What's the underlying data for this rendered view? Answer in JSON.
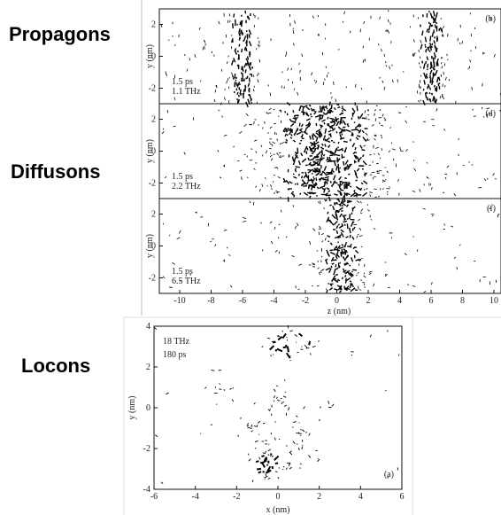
{
  "labels": [
    "Propagons",
    "Diffusons",
    "Locons"
  ],
  "top_figure": {
    "x_label": "z (nm)",
    "y_label": "y (nm)",
    "x_ticks": [
      -10,
      -8,
      -6,
      -4,
      -2,
      0,
      2,
      4,
      6,
      8,
      10
    ],
    "panels": [
      {
        "tag": "(b)",
        "time": "1.5 ps",
        "freq": "1.1 THz",
        "y_ticks": [
          2,
          0,
          -2
        ]
      },
      {
        "tag": "(d)",
        "time": "1.5 ps",
        "freq": "2.2 THz",
        "y_ticks": [
          2,
          0,
          -2
        ]
      },
      {
        "tag": "(f)",
        "time": "1.5 ps",
        "freq": "6.5 THz",
        "y_ticks": [
          2,
          0,
          -2
        ]
      }
    ]
  },
  "bottom_figure": {
    "x_label": "x (nm)",
    "y_label": "y (nm)",
    "x_ticks": [
      -6,
      -4,
      -2,
      0,
      2,
      4,
      6
    ],
    "y_ticks": [
      4,
      2,
      0,
      -2,
      -4
    ],
    "tag": "(a)",
    "freq": "18 THz",
    "time": "180 ps"
  }
}
